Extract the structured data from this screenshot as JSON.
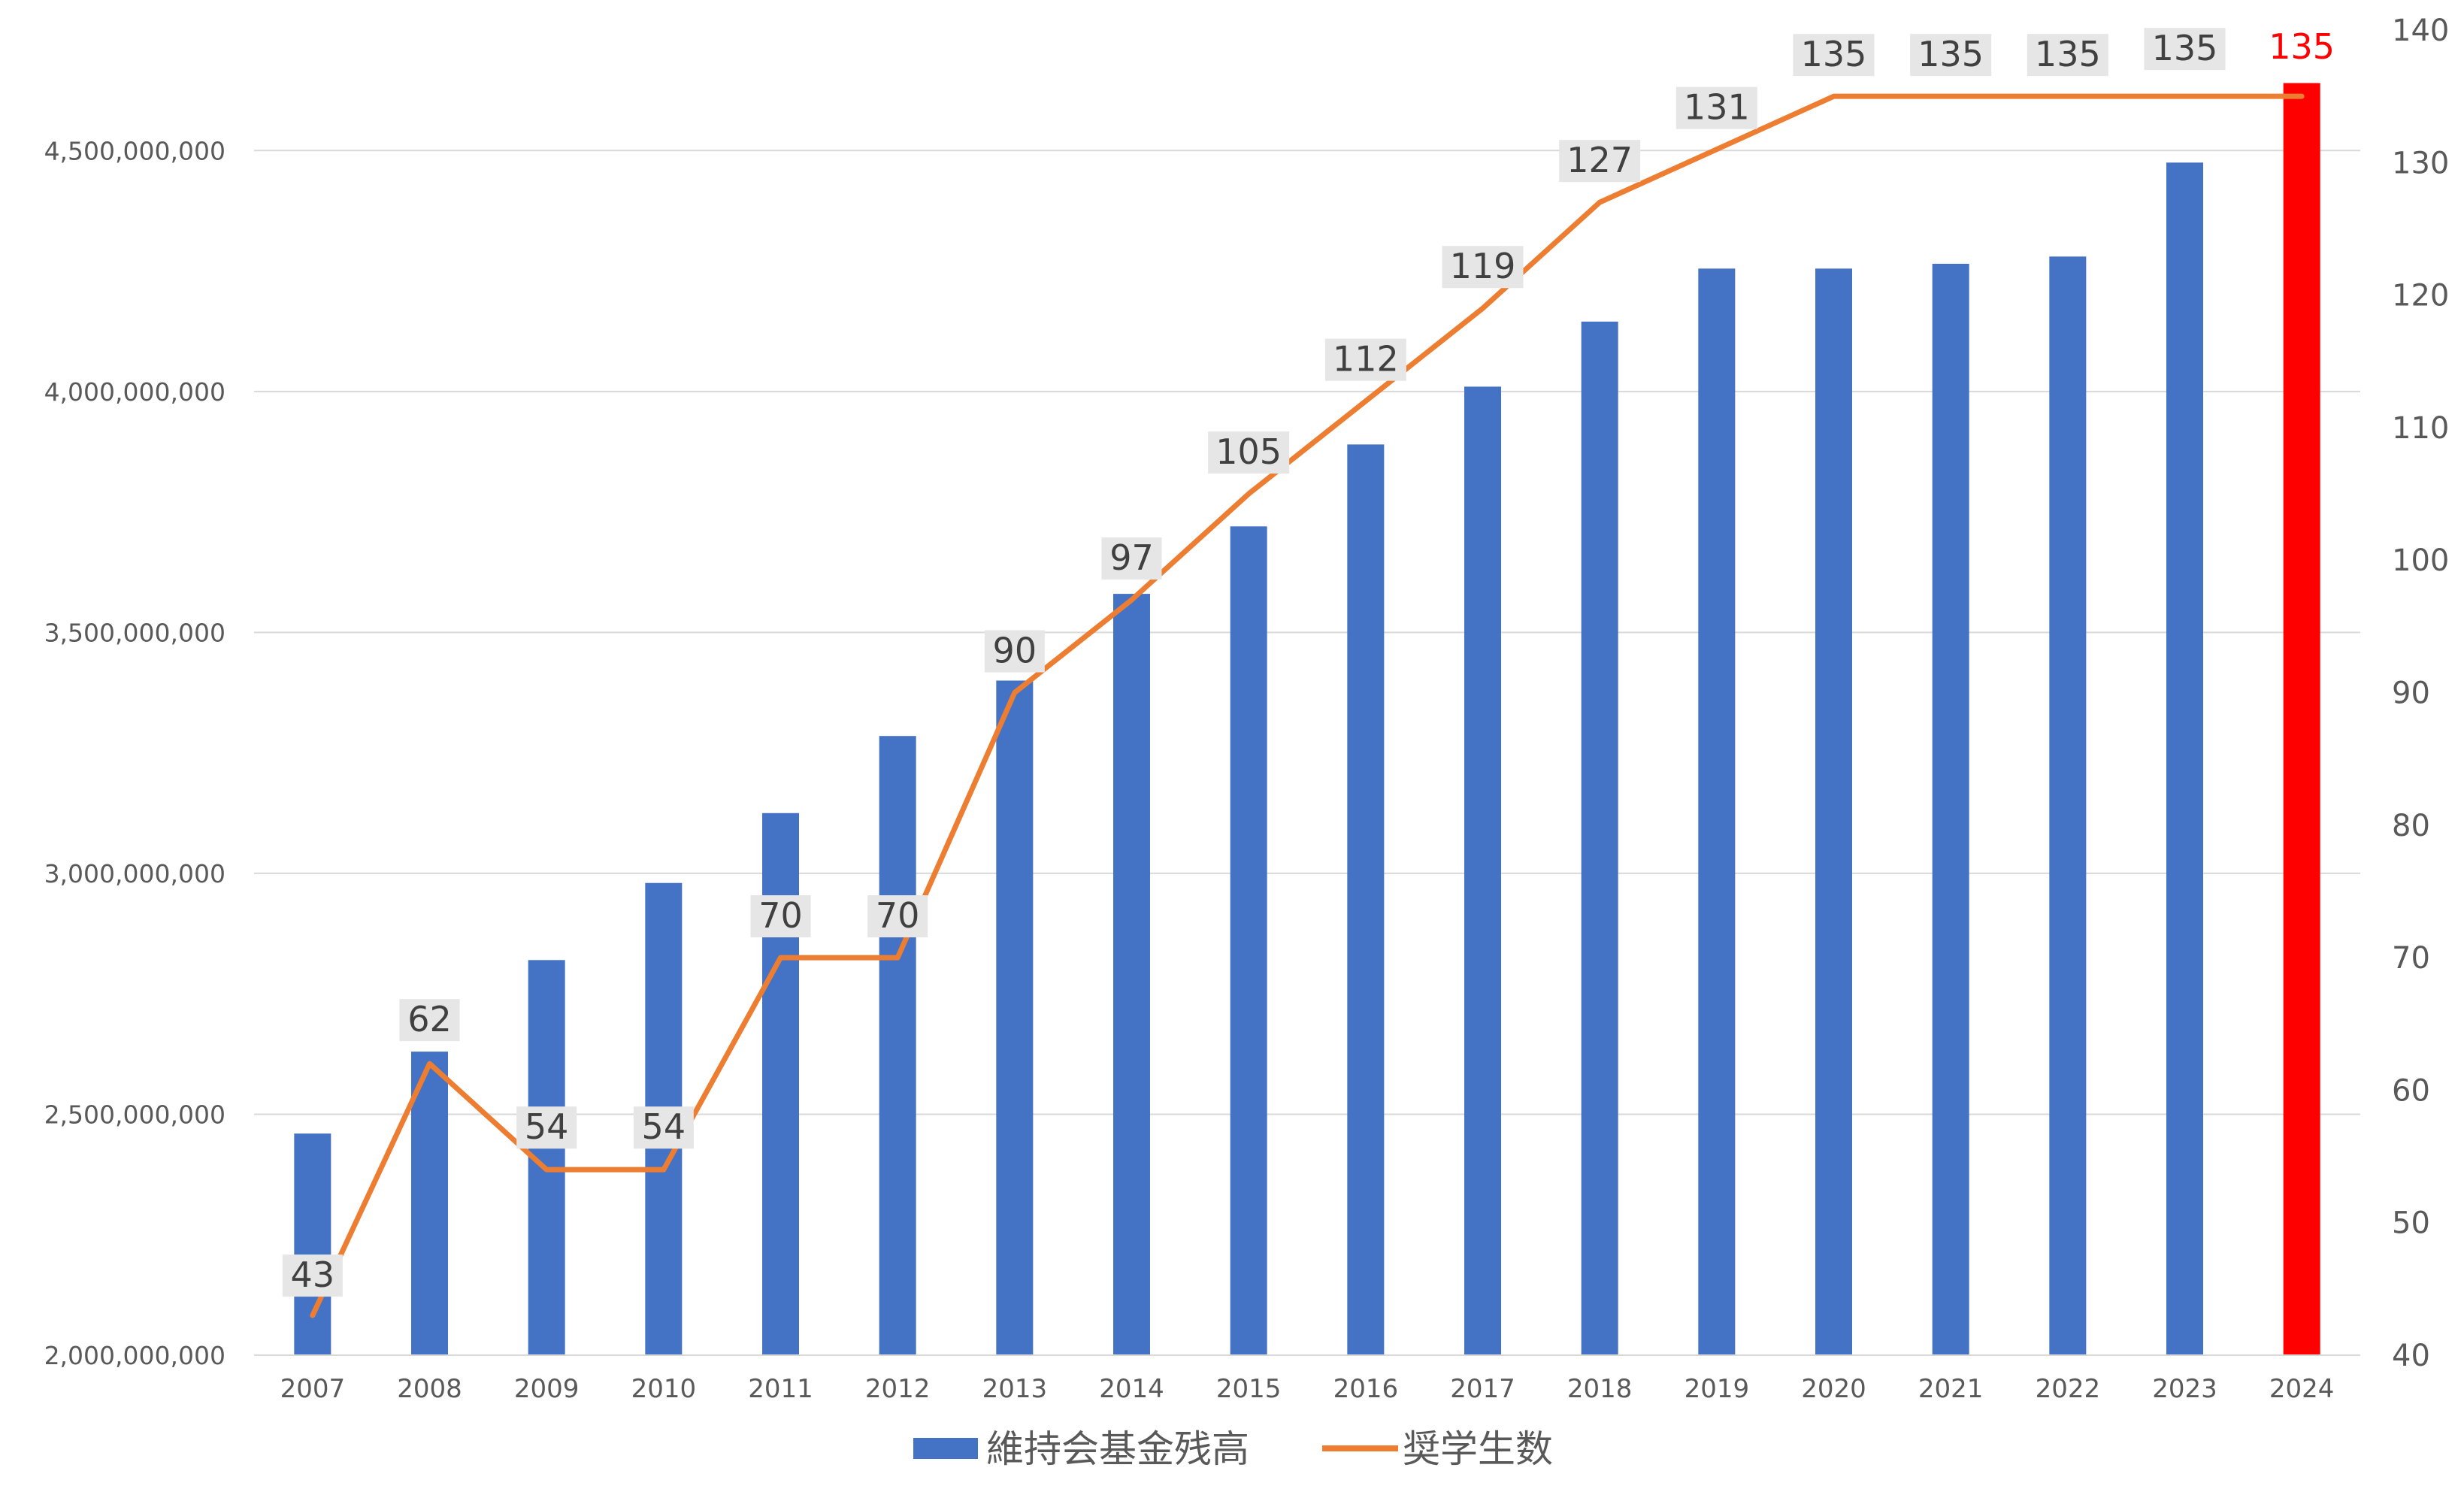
{
  "chart_data": {
    "type": "bar",
    "title": "",
    "xlabel": "",
    "ylabel": "",
    "categories": [
      "2007",
      "2008",
      "2009",
      "2010",
      "2011",
      "2012",
      "2013",
      "2014",
      "2015",
      "2016",
      "2017",
      "2018",
      "2019",
      "2020",
      "2021",
      "2022",
      "2023",
      "2024"
    ],
    "series": [
      {
        "name": "維持会基金残高",
        "type": "bar",
        "axis": "left",
        "color": "#4472C4",
        "highlight_color": "#FF0000",
        "highlight_index": 17,
        "values": [
          2460000000,
          2630000000,
          2820000000,
          2980000000,
          3125000000,
          3285000000,
          3400000000,
          3580000000,
          3720000000,
          3890000000,
          4010000000,
          4145000000,
          4255000000,
          4255000000,
          4265000000,
          4280000000,
          4475000000,
          4640000000
        ]
      },
      {
        "name": "奨学生数",
        "type": "line",
        "axis": "right",
        "color": "#ED7D31",
        "values": [
          43,
          62,
          54,
          54,
          70,
          70,
          90,
          97,
          105,
          112,
          119,
          127,
          131,
          135,
          135,
          135,
          135,
          135
        ],
        "data_labels": [
          "43",
          "62",
          "54",
          "54",
          "70",
          "70",
          "90",
          "97",
          "105",
          "112",
          "119",
          "127",
          "131",
          "135",
          "135",
          "135",
          "135",
          "135"
        ],
        "highlight_label_color": "#FF0000"
      }
    ],
    "y_left": {
      "ylim": [
        2000000000,
        4750000000
      ],
      "ticks": [
        2000000000,
        2500000000,
        3000000000,
        3500000000,
        4000000000,
        4500000000
      ],
      "tick_labels": [
        "2,000,000,000",
        "2,500,000,000",
        "3,000,000,000",
        "3,500,000,000",
        "4,000,000,000",
        "4,500,000,000"
      ]
    },
    "y_right": {
      "ylim": [
        40,
        140
      ],
      "ticks": [
        40,
        50,
        60,
        70,
        80,
        90,
        100,
        110,
        120,
        130,
        140
      ],
      "tick_labels": [
        "40",
        "50",
        "60",
        "70",
        "80",
        "90",
        "100",
        "110",
        "120",
        "130",
        "140"
      ]
    },
    "grid": true,
    "legend_position": "bottom-center",
    "legend": [
      "維持会基金残高",
      "奨学生数"
    ]
  }
}
